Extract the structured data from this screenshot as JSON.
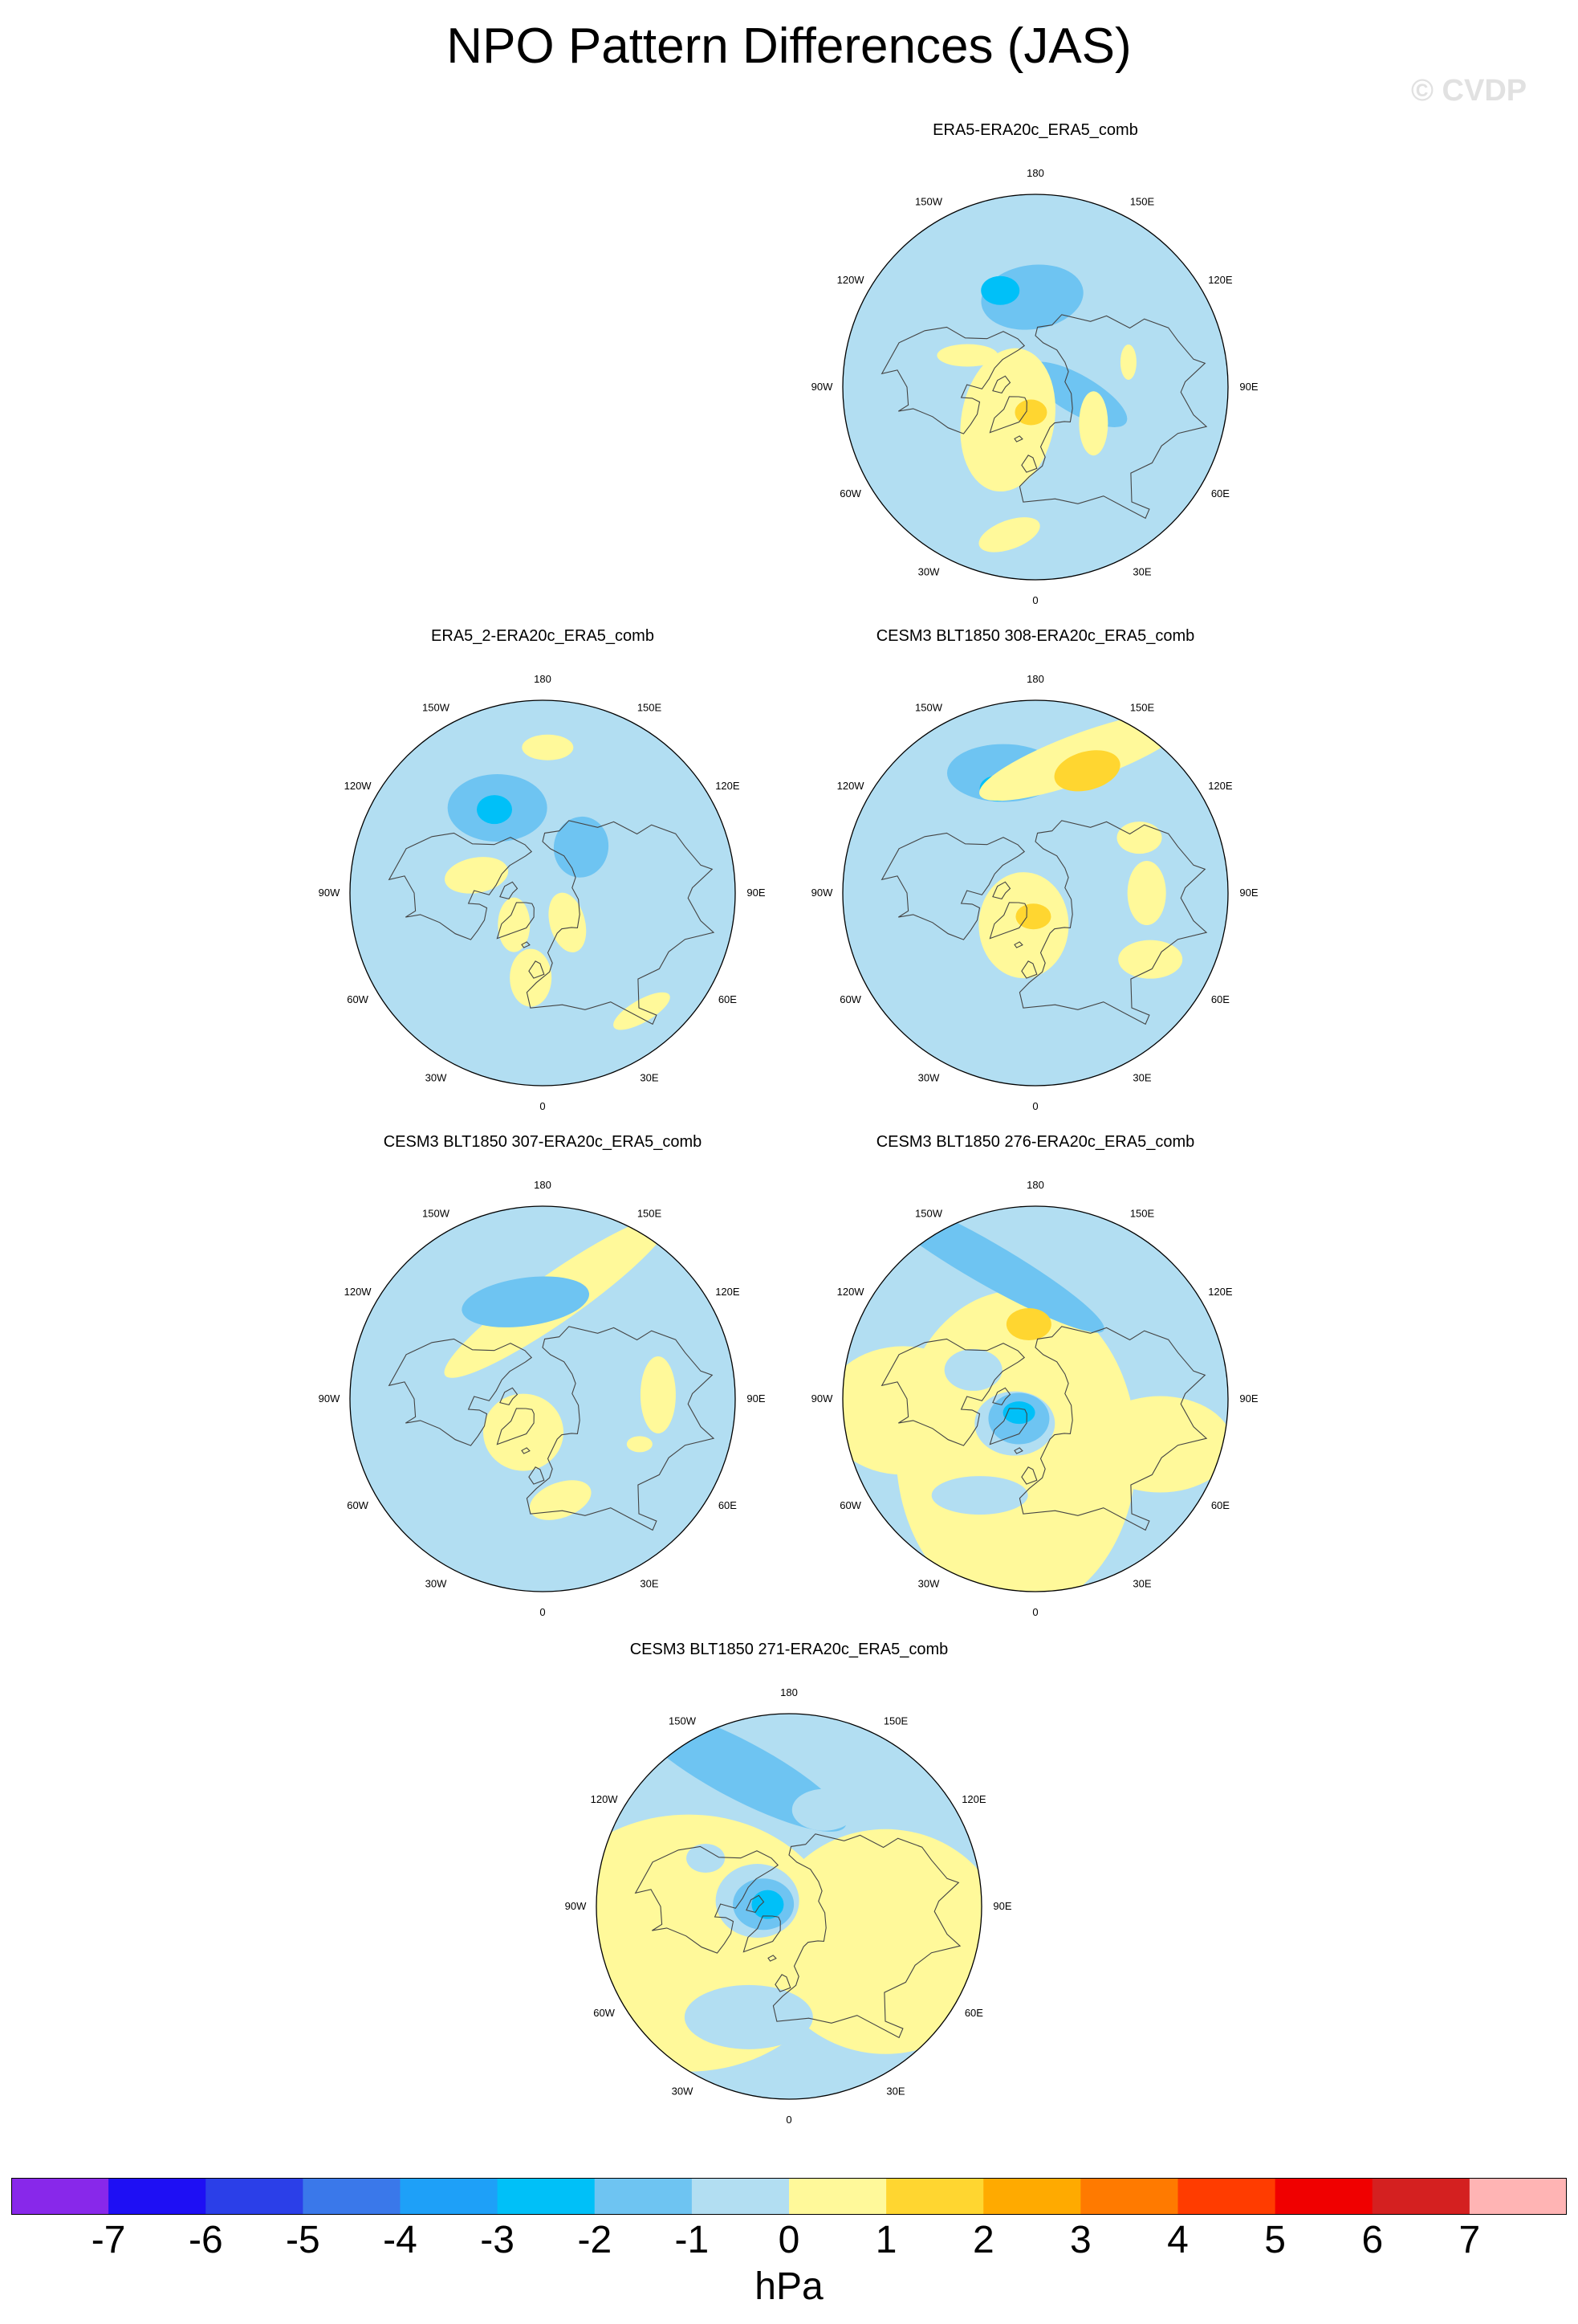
{
  "title": "NPO Pattern Differences (JAS)",
  "watermark": "© CVDP",
  "units": "hPa",
  "colors": {
    "-8": "#8828ea",
    "-7": "#1e0ff4",
    "-6": "#2b3fe8",
    "-5": "#3a78ea",
    "-4": "#1ea0f8",
    "-3": "#00c0f8",
    "-2": "#6ec4f2",
    "-1": "#b2def2",
    "0": "#fff99a",
    "1": "#ffd630",
    "2": "#ffaa00",
    "3": "#ff7a00",
    "4": "#ff3c00",
    "5": "#f00000",
    "6": "#d42020",
    "7": "#ffb4b4"
  },
  "colorbar": {
    "levels": [
      "-7",
      "-6",
      "-5",
      "-4",
      "-3",
      "-2",
      "-1",
      "0",
      "1",
      "2",
      "3",
      "4",
      "5",
      "6",
      "7"
    ],
    "bins": [
      "-8",
      "-7",
      "-6",
      "-5",
      "-4",
      "-3",
      "-2",
      "-1",
      "0",
      "1",
      "2",
      "3",
      "4",
      "5",
      "6",
      "7"
    ]
  },
  "lon_labels": [
    "180",
    "150E",
    "120E",
    "90E",
    "60E",
    "30E",
    "0",
    "30W",
    "60W",
    "90W",
    "120W",
    "150W"
  ],
  "panels": [
    {
      "title": "ERA5-ERA20c_ERA5_comb",
      "features": [
        {
          "type": "ellipse",
          "lat": 48,
          "lon": -178,
          "rx": 64,
          "ry": 40,
          "rot": -8,
          "level": "-2"
        },
        {
          "type": "ellipse",
          "lat": 42,
          "lon": -160,
          "rx": 24,
          "ry": 18,
          "rot": 0,
          "level": "-3"
        },
        {
          "type": "ellipse",
          "lat": 70,
          "lon": 80,
          "rx": 70,
          "ry": 24,
          "rot": 30,
          "level": "-2"
        },
        {
          "type": "ellipse",
          "lat": 70,
          "lon": -40,
          "rx": 58,
          "ry": 90,
          "rot": 10,
          "level": "0"
        },
        {
          "type": "ellipse",
          "lat": 78,
          "lon": -10,
          "rx": 20,
          "ry": 16,
          "rot": 0,
          "level": "1"
        },
        {
          "type": "ellipse",
          "lat": 55,
          "lon": -115,
          "rx": 38,
          "ry": 14,
          "rot": 0,
          "level": "0"
        },
        {
          "type": "ellipse",
          "lat": 20,
          "lon": -10,
          "rx": 40,
          "ry": 18,
          "rot": -20,
          "level": "0"
        },
        {
          "type": "ellipse",
          "lat": 45,
          "lon": 105,
          "rx": 10,
          "ry": 22,
          "rot": 0,
          "level": "0"
        },
        {
          "type": "ellipse",
          "lat": 58,
          "lon": 58,
          "rx": 18,
          "ry": 40,
          "rot": 0,
          "level": "0"
        }
      ]
    },
    {
      "title": "ERA5_2-ERA20c_ERA5_comb",
      "features": [
        {
          "type": "ellipse",
          "lat": 45,
          "lon": -152,
          "rx": 62,
          "ry": 42,
          "rot": 0,
          "level": "-2"
        },
        {
          "type": "ellipse",
          "lat": 45,
          "lon": -150,
          "rx": 22,
          "ry": 18,
          "rot": 0,
          "level": "-3"
        },
        {
          "type": "ellipse",
          "lat": 62,
          "lon": 140,
          "rx": 34,
          "ry": 38,
          "rot": 10,
          "level": "-2"
        },
        {
          "type": "ellipse",
          "lat": 22,
          "lon": 178,
          "rx": 32,
          "ry": 16,
          "rot": 0,
          "level": "0"
        },
        {
          "type": "ellipse",
          "lat": 58,
          "lon": -105,
          "rx": 40,
          "ry": 22,
          "rot": -10,
          "level": "0"
        },
        {
          "type": "ellipse",
          "lat": 70,
          "lon": -42,
          "rx": 20,
          "ry": 34,
          "rot": 0,
          "level": "0"
        },
        {
          "type": "ellipse",
          "lat": 72,
          "lon": 40,
          "rx": 22,
          "ry": 38,
          "rot": -15,
          "level": "0"
        },
        {
          "type": "ellipse",
          "lat": 50,
          "lon": -8,
          "rx": 26,
          "ry": 36,
          "rot": 0,
          "level": "0"
        },
        {
          "type": "ellipse",
          "lat": 18,
          "lon": 40,
          "rx": 40,
          "ry": 14,
          "rot": -30,
          "level": "0"
        }
      ]
    },
    {
      "title": "CESM3 BLT1850 308-ERA20c_ERA5_comb",
      "features": [
        {
          "type": "ellipse",
          "lat": 32,
          "lon": -165,
          "rx": 70,
          "ry": 36,
          "rot": 0,
          "level": "-2"
        },
        {
          "type": "ellipse",
          "lat": 38,
          "lon": -160,
          "rx": 22,
          "ry": 16,
          "rot": 0,
          "level": "-3"
        },
        {
          "type": "ellipse",
          "lat": 22,
          "lon": 160,
          "rx": 140,
          "ry": 30,
          "rot": -20,
          "level": "0"
        },
        {
          "type": "ellipse",
          "lat": 28,
          "lon": 157,
          "rx": 42,
          "ry": 24,
          "rot": -15,
          "level": "1"
        },
        {
          "type": "ellipse",
          "lat": 74,
          "lon": -20,
          "rx": 56,
          "ry": 66,
          "rot": 0,
          "level": "0"
        },
        {
          "type": "ellipse",
          "lat": 79,
          "lon": -5,
          "rx": 22,
          "ry": 16,
          "rot": 0,
          "level": "1"
        },
        {
          "type": "ellipse",
          "lat": 38,
          "lon": 90,
          "rx": 24,
          "ry": 40,
          "rot": 0,
          "level": "0"
        },
        {
          "type": "ellipse",
          "lat": 28,
          "lon": 60,
          "rx": 40,
          "ry": 24,
          "rot": 0,
          "level": "0"
        },
        {
          "type": "ellipse",
          "lat": 35,
          "lon": 118,
          "rx": 28,
          "ry": 20,
          "rot": 0,
          "level": "0"
        }
      ]
    },
    {
      "title": "CESM3 BLT1850 307-ERA20c_ERA5_comb",
      "features": [
        {
          "type": "ellipse",
          "lat": 42,
          "lon": 172,
          "rx": 170,
          "ry": 30,
          "rot": -35,
          "level": "0"
        },
        {
          "type": "ellipse",
          "lat": 44,
          "lon": -170,
          "rx": 80,
          "ry": 30,
          "rot": -8,
          "level": "-2"
        },
        {
          "type": "ellipse",
          "lat": 72,
          "lon": -30,
          "rx": 50,
          "ry": 48,
          "rot": 0,
          "level": "0"
        },
        {
          "type": "ellipse",
          "lat": 36,
          "lon": 92,
          "rx": 22,
          "ry": 48,
          "rot": 0,
          "level": "0"
        },
        {
          "type": "ellipse",
          "lat": 42,
          "lon": 10,
          "rx": 40,
          "ry": 22,
          "rot": -20,
          "level": "0"
        },
        {
          "type": "ellipse",
          "lat": 40,
          "lon": 65,
          "rx": 16,
          "ry": 10,
          "rot": 0,
          "level": "0"
        }
      ]
    },
    {
      "title": "CESM3 BLT1850 276-ERA20c_ERA5_comb",
      "features": [
        {
          "type": "ellipse",
          "lat": 64,
          "lon": -20,
          "rx": 150,
          "ry": 200,
          "rot": 0,
          "level": "0"
        },
        {
          "type": "ellipse",
          "lat": 28,
          "lon": -85,
          "rx": 100,
          "ry": 80,
          "rot": 0,
          "level": "0"
        },
        {
          "type": "ellipse",
          "lat": 28,
          "lon": 70,
          "rx": 90,
          "ry": 60,
          "rot": 0,
          "level": "0"
        },
        {
          "type": "ellipse",
          "lat": 22,
          "lon": -160,
          "rx": 170,
          "ry": 26,
          "rot": 30,
          "level": "-2"
        },
        {
          "type": "ellipse",
          "lat": 75,
          "lon": -40,
          "rx": 50,
          "ry": 40,
          "rot": 0,
          "level": "-1"
        },
        {
          "type": "ellipse",
          "lat": 78,
          "lon": -40,
          "rx": 38,
          "ry": 32,
          "rot": 0,
          "level": "-2"
        },
        {
          "type": "ellipse",
          "lat": 80,
          "lon": -50,
          "rx": 20,
          "ry": 14,
          "rot": 0,
          "level": "-3"
        },
        {
          "type": "ellipse",
          "lat": 55,
          "lon": -175,
          "rx": 28,
          "ry": 20,
          "rot": 0,
          "level": "1"
        },
        {
          "type": "ellipse",
          "lat": 38,
          "lon": -30,
          "rx": 60,
          "ry": 24,
          "rot": 0,
          "level": "-1"
        },
        {
          "type": "ellipse",
          "lat": 58,
          "lon": -115,
          "rx": 36,
          "ry": 26,
          "rot": 0,
          "level": "-1"
        }
      ]
    },
    {
      "title": "CESM3 BLT1850 271-ERA20c_ERA5_comb",
      "features": [
        {
          "type": "ellipse",
          "lat": 40,
          "lon": -70,
          "rx": 190,
          "ry": 160,
          "rot": 0,
          "level": "0"
        },
        {
          "type": "ellipse",
          "lat": 42,
          "lon": 70,
          "rx": 150,
          "ry": 140,
          "rot": 0,
          "level": "0"
        },
        {
          "type": "ellipse",
          "lat": 22,
          "lon": -160,
          "rx": 150,
          "ry": 36,
          "rot": 28,
          "level": "-2"
        },
        {
          "type": "ellipse",
          "lat": 75,
          "lon": -100,
          "rx": 52,
          "ry": 46,
          "rot": 0,
          "level": "-1"
        },
        {
          "type": "ellipse",
          "lat": 78,
          "lon": -95,
          "rx": 38,
          "ry": 32,
          "rot": 0,
          "level": "-2"
        },
        {
          "type": "ellipse",
          "lat": 80,
          "lon": -95,
          "rx": 20,
          "ry": 18,
          "rot": 0,
          "level": "-3"
        },
        {
          "type": "ellipse",
          "lat": 35,
          "lon": -20,
          "rx": 80,
          "ry": 40,
          "rot": 0,
          "level": "-1"
        },
        {
          "type": "ellipse",
          "lat": 42,
          "lon": 160,
          "rx": 40,
          "ry": 26,
          "rot": 0,
          "level": "-1"
        },
        {
          "type": "ellipse",
          "lat": 45,
          "lon": -120,
          "rx": 24,
          "ry": 18,
          "rot": 0,
          "level": "-1"
        }
      ]
    }
  ]
}
